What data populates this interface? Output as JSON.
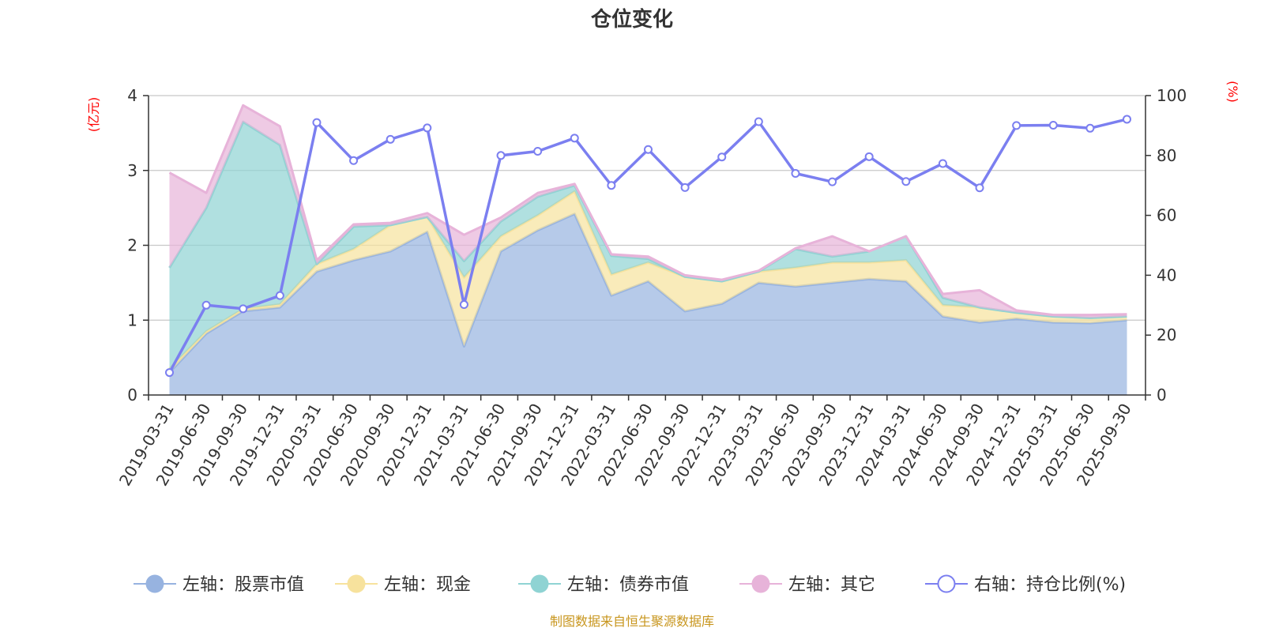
{
  "chart_data": {
    "type": "area",
    "title": "仓位变化",
    "left_unit": "(亿元)",
    "right_unit": "(%)",
    "source": "制图数据来自恒生聚源数据库",
    "categories": [
      "2019-03-31",
      "2019-06-30",
      "2019-09-30",
      "2019-12-31",
      "2020-03-31",
      "2020-06-30",
      "2020-09-30",
      "2020-12-31",
      "2021-03-31",
      "2021-06-30",
      "2021-09-30",
      "2021-12-31",
      "2022-03-31",
      "2022-06-30",
      "2022-09-30",
      "2022-12-31",
      "2023-03-31",
      "2023-06-30",
      "2023-09-30",
      "2023-12-31",
      "2024-03-31",
      "2024-06-30",
      "2024-09-30",
      "2024-12-31",
      "2025-03-31",
      "2025-06-30",
      "2025-09-30"
    ],
    "left_axis": {
      "min": 0,
      "max": 4,
      "ticks": [
        "0",
        "1",
        "2",
        "3",
        "4"
      ]
    },
    "right_axis": {
      "min": 0,
      "max": 100,
      "ticks": [
        "0",
        "20",
        "40",
        "60",
        "80",
        "100"
      ]
    },
    "grid": true,
    "legend_position": "bottom",
    "series": [
      {
        "name": "左轴：股票市值",
        "axis": "left",
        "color": "#97b3e0",
        "values": [
          0.3,
          0.82,
          1.12,
          1.17,
          1.65,
          1.8,
          1.92,
          2.18,
          0.65,
          1.92,
          2.2,
          2.42,
          1.33,
          1.52,
          1.12,
          1.22,
          1.5,
          1.45,
          1.5,
          1.55,
          1.52,
          1.05,
          0.97,
          1.02,
          0.97,
          0.96,
          1.0
        ]
      },
      {
        "name": "左轴：现金",
        "axis": "left",
        "color": "#f7e29d",
        "values": [
          0.05,
          0.03,
          0.03,
          0.04,
          0.1,
          0.15,
          0.35,
          0.2,
          0.92,
          0.2,
          0.2,
          0.3,
          0.28,
          0.25,
          0.46,
          0.3,
          0.15,
          0.25,
          0.27,
          0.22,
          0.28,
          0.15,
          0.2,
          0.08,
          0.08,
          0.07,
          0.05
        ]
      },
      {
        "name": "左轴：债券市值",
        "axis": "left",
        "color": "#8fd3d3",
        "values": [
          1.35,
          1.65,
          2.5,
          2.13,
          0.0,
          0.3,
          0.0,
          0.0,
          0.22,
          0.2,
          0.25,
          0.08,
          0.25,
          0.05,
          0.0,
          0.0,
          0.0,
          0.25,
          0.08,
          0.15,
          0.32,
          0.1,
          0.0,
          0.0,
          0.0,
          0.0,
          0.0
        ]
      },
      {
        "name": "左轴：其它",
        "axis": "left",
        "color": "#e7b3d9",
        "values": [
          1.27,
          0.2,
          0.22,
          0.25,
          0.05,
          0.03,
          0.03,
          0.05,
          0.35,
          0.05,
          0.05,
          0.02,
          0.02,
          0.03,
          0.02,
          0.02,
          0.01,
          0.01,
          0.27,
          0.0,
          0.0,
          0.05,
          0.23,
          0.03,
          0.02,
          0.04,
          0.03
        ]
      },
      {
        "name": "右轴：持仓比例(%)",
        "axis": "right",
        "color": "#7b7ff0",
        "values": [
          7.5,
          30,
          28.8,
          33.2,
          91,
          78.3,
          85.4,
          89.2,
          30.2,
          80,
          81.4,
          85.8,
          70,
          82,
          69.3,
          79.5,
          91.3,
          74,
          71.2,
          79.6,
          71.3,
          77.3,
          69.2,
          90,
          90.1,
          89.1,
          92.1
        ]
      }
    ]
  }
}
